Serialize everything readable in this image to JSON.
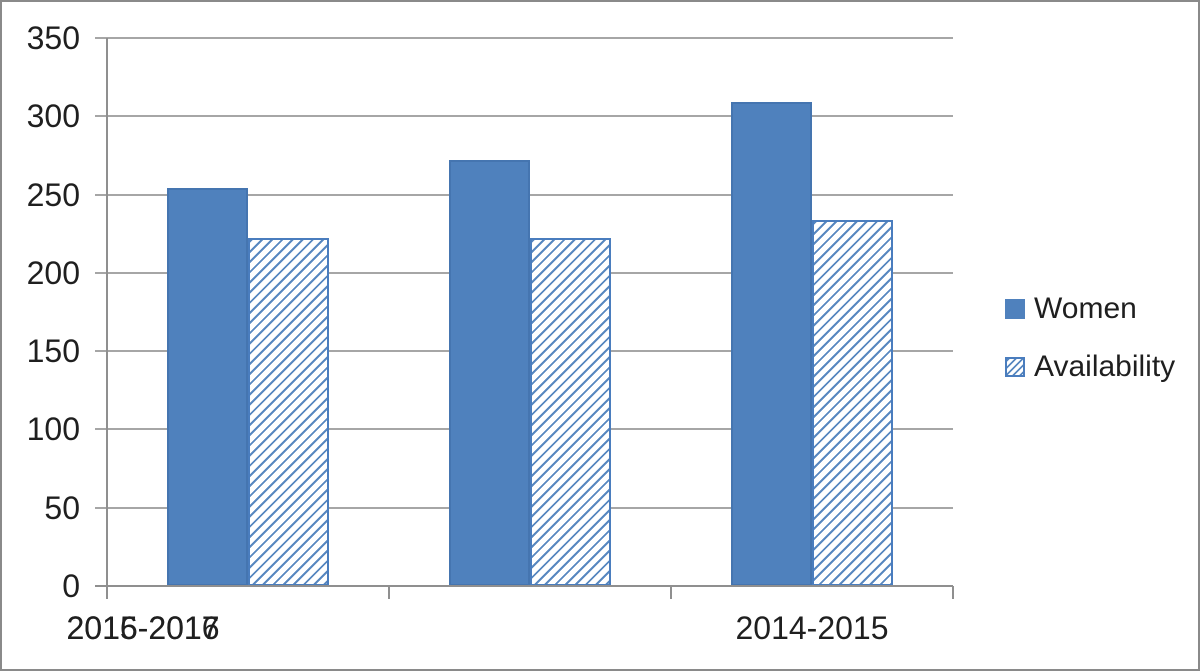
{
  "chart_data": {
    "type": "bar",
    "title": "",
    "categories": [
      "2014-2015",
      "2015-2016",
      "2016-2017"
    ],
    "series": [
      {
        "name": "Women",
        "style": "solid",
        "values": [
          254,
          272,
          309
        ]
      },
      {
        "name": "Availability",
        "style": "hatch",
        "values": [
          222,
          222,
          234
        ]
      }
    ],
    "ylim": [
      0,
      350
    ],
    "ytick_step": 50,
    "yticks": [
      0,
      50,
      100,
      150,
      200,
      250,
      300,
      350
    ],
    "grid": true,
    "legend_position": "right-middle",
    "colors": {
      "bar_solid": "#4f81bd",
      "bar_hatch_line": "#4f81bd",
      "bar_hatch_border": "#4a7dbe",
      "gridline": "#a6a6a6",
      "axis": "#8f8f8f",
      "text": "#1f1f1f",
      "frame_border": "#8a8a8a",
      "background": "#ffffff"
    }
  }
}
